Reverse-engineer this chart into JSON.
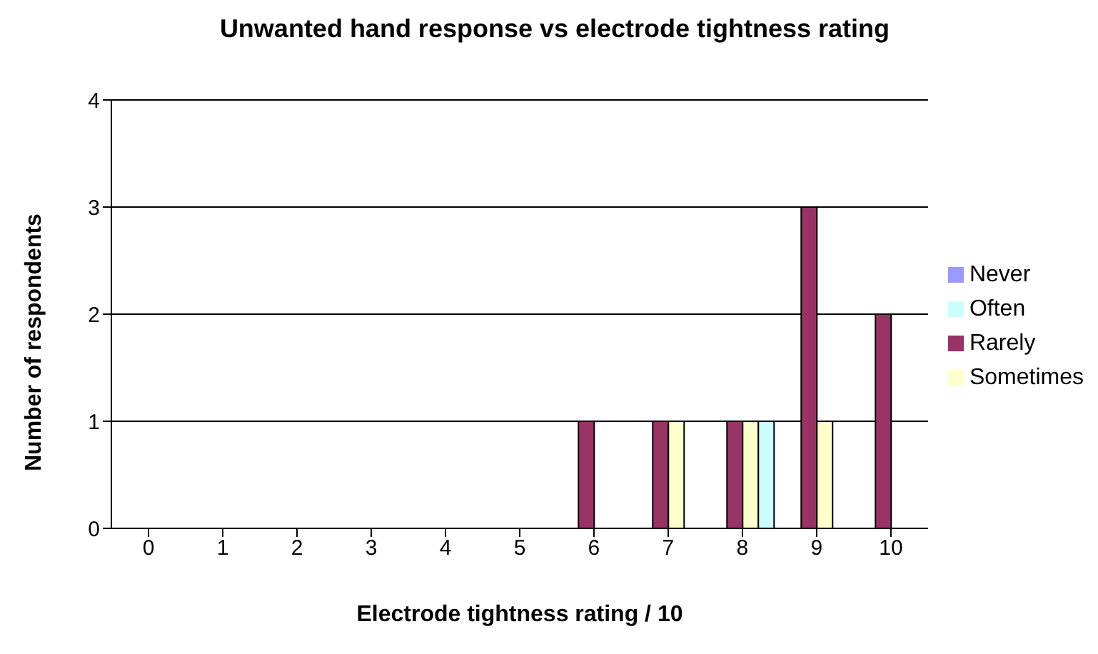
{
  "chart_data": {
    "type": "bar",
    "title": "Unwanted hand response vs electrode tightness rating",
    "xlabel": "Electrode tightness rating / 10",
    "ylabel": "Number of respondents",
    "categories": [
      "0",
      "1",
      "2",
      "3",
      "4",
      "5",
      "6",
      "7",
      "8",
      "9",
      "10"
    ],
    "series": [
      {
        "name": "Never",
        "color": "#9999ff",
        "values": [
          0,
          0,
          0,
          0,
          0,
          0,
          0,
          0,
          0,
          0,
          0
        ]
      },
      {
        "name": "Rarely",
        "color": "#993366",
        "values": [
          0,
          0,
          0,
          0,
          0,
          0,
          1,
          1,
          1,
          3,
          2
        ]
      },
      {
        "name": "Sometimes",
        "color": "#ffffcc",
        "values": [
          0,
          0,
          0,
          0,
          0,
          0,
          0,
          1,
          1,
          1,
          0
        ]
      },
      {
        "name": "Often",
        "color": "#ccffff",
        "values": [
          0,
          0,
          0,
          0,
          0,
          0,
          0,
          0,
          1,
          0,
          0
        ]
      }
    ],
    "ylim": [
      0,
      4
    ],
    "yticks": [
      0,
      1,
      2,
      3,
      4
    ],
    "grid": "y",
    "legend": "right"
  }
}
